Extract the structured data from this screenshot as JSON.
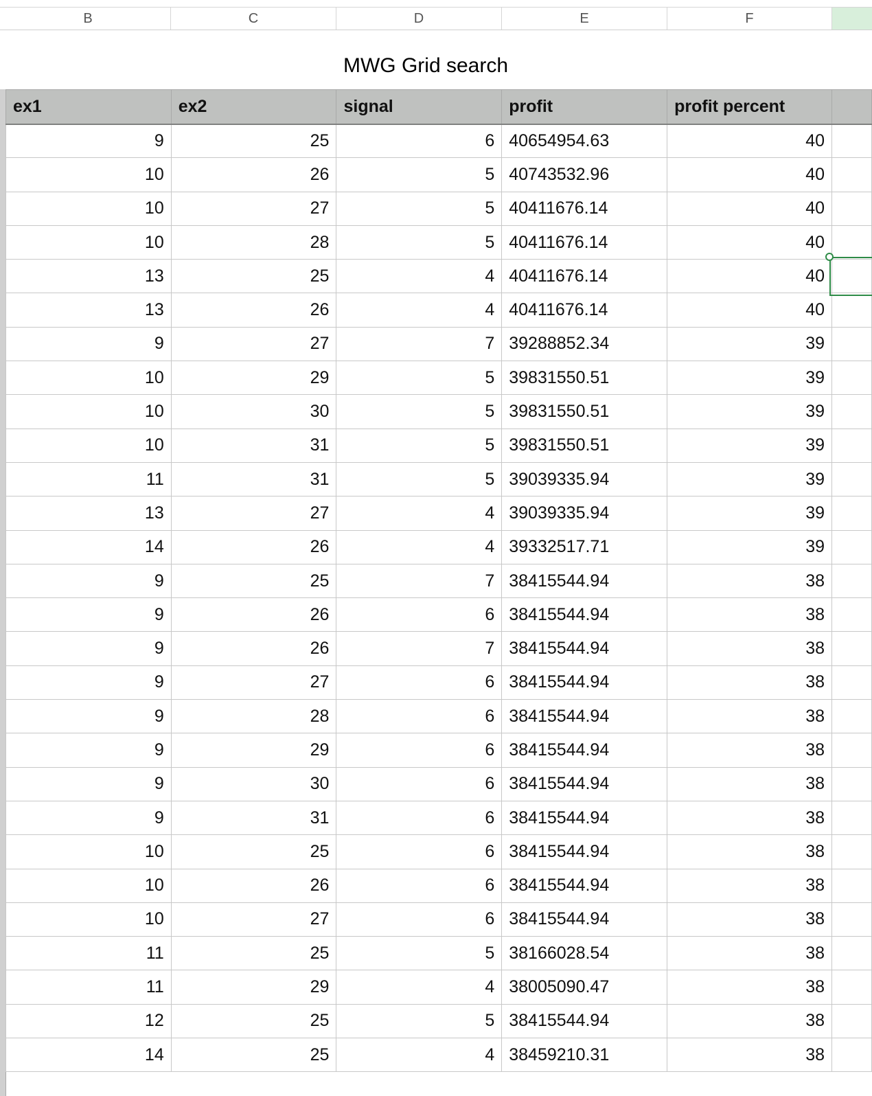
{
  "columns": {
    "b": "B",
    "c": "C",
    "d": "D",
    "e": "E",
    "f": "F"
  },
  "title": "MWG Grid search",
  "headers": [
    "ex1",
    "ex2",
    "signal",
    "profit",
    "profit percent"
  ],
  "rows": [
    [
      "9",
      "25",
      "6",
      "40654954.63",
      "40"
    ],
    [
      "10",
      "26",
      "5",
      "40743532.96",
      "40"
    ],
    [
      "10",
      "27",
      "5",
      "40411676.14",
      "40"
    ],
    [
      "10",
      "28",
      "5",
      "40411676.14",
      "40"
    ],
    [
      "13",
      "25",
      "4",
      "40411676.14",
      "40"
    ],
    [
      "13",
      "26",
      "4",
      "40411676.14",
      "40"
    ],
    [
      "9",
      "27",
      "7",
      "39288852.34",
      "39"
    ],
    [
      "10",
      "29",
      "5",
      "39831550.51",
      "39"
    ],
    [
      "10",
      "30",
      "5",
      "39831550.51",
      "39"
    ],
    [
      "10",
      "31",
      "5",
      "39831550.51",
      "39"
    ],
    [
      "11",
      "31",
      "5",
      "39039335.94",
      "39"
    ],
    [
      "13",
      "27",
      "4",
      "39039335.94",
      "39"
    ],
    [
      "14",
      "26",
      "4",
      "39332517.71",
      "39"
    ],
    [
      "9",
      "25",
      "7",
      "38415544.94",
      "38"
    ],
    [
      "9",
      "26",
      "6",
      "38415544.94",
      "38"
    ],
    [
      "9",
      "26",
      "7",
      "38415544.94",
      "38"
    ],
    [
      "9",
      "27",
      "6",
      "38415544.94",
      "38"
    ],
    [
      "9",
      "28",
      "6",
      "38415544.94",
      "38"
    ],
    [
      "9",
      "29",
      "6",
      "38415544.94",
      "38"
    ],
    [
      "9",
      "30",
      "6",
      "38415544.94",
      "38"
    ],
    [
      "9",
      "31",
      "6",
      "38415544.94",
      "38"
    ],
    [
      "10",
      "25",
      "6",
      "38415544.94",
      "38"
    ],
    [
      "10",
      "26",
      "6",
      "38415544.94",
      "38"
    ],
    [
      "10",
      "27",
      "6",
      "38415544.94",
      "38"
    ],
    [
      "11",
      "25",
      "5",
      "38166028.54",
      "38"
    ],
    [
      "11",
      "29",
      "4",
      "38005090.47",
      "38"
    ],
    [
      "12",
      "25",
      "5",
      "38415544.94",
      "38"
    ],
    [
      "14",
      "25",
      "4",
      "38459210.31",
      "38"
    ]
  ],
  "colors": {
    "header_bg": "#bfc1bf",
    "selection": "#2e8b47",
    "selected_column": "#d8efdb"
  }
}
